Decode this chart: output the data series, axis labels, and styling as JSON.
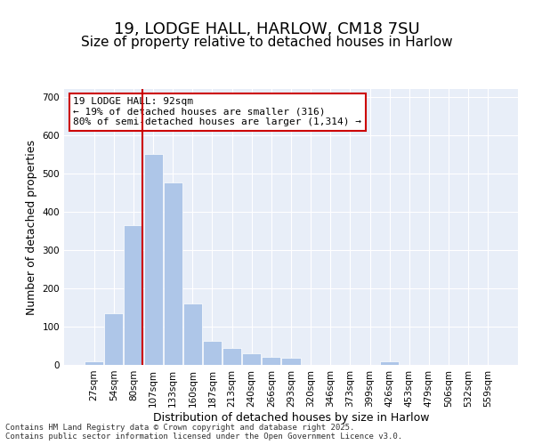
{
  "title_line1": "19, LODGE HALL, HARLOW, CM18 7SU",
  "title_line2": "Size of property relative to detached houses in Harlow",
  "xlabel": "Distribution of detached houses by size in Harlow",
  "ylabel": "Number of detached properties",
  "bins": [
    "27sqm",
    "54sqm",
    "80sqm",
    "107sqm",
    "133sqm",
    "160sqm",
    "187sqm",
    "213sqm",
    "240sqm",
    "266sqm",
    "293sqm",
    "320sqm",
    "346sqm",
    "373sqm",
    "399sqm",
    "426sqm",
    "453sqm",
    "479sqm",
    "506sqm",
    "532sqm",
    "559sqm"
  ],
  "values": [
    10,
    135,
    365,
    550,
    475,
    160,
    63,
    45,
    30,
    22,
    18,
    0,
    0,
    0,
    0,
    10,
    0,
    0,
    0,
    0,
    0
  ],
  "bar_color": "#aec6e8",
  "bar_edge_color": "#aec6e8",
  "vline_x_index": 2.45,
  "vline_color": "#cc0000",
  "background_color": "#e8eef8",
  "annotation_text": "19 LODGE HALL: 92sqm\n← 19% of detached houses are smaller (316)\n80% of semi-detached houses are larger (1,314) →",
  "annotation_box_color": "#ffffff",
  "annotation_box_edge": "#cc0000",
  "ylim": [
    0,
    720
  ],
  "yticks": [
    0,
    100,
    200,
    300,
    400,
    500,
    600,
    700
  ],
  "footnote": "Contains HM Land Registry data © Crown copyright and database right 2025.\nContains public sector information licensed under the Open Government Licence v3.0.",
  "title_fontsize": 13,
  "subtitle_fontsize": 11,
  "axis_label_fontsize": 9,
  "tick_fontsize": 7.5,
  "annot_fontsize": 8
}
